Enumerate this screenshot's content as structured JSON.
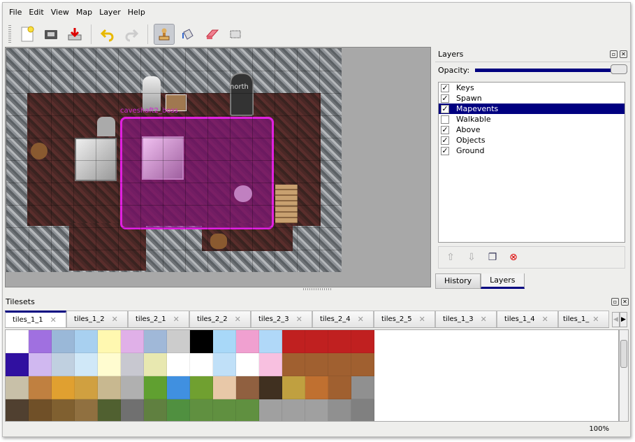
{
  "menu": [
    "File",
    "Edit",
    "View",
    "Map",
    "Layer",
    "Help"
  ],
  "toolbar": {
    "icons": [
      "new-file-icon",
      "open-folder-icon",
      "save-icon",
      "undo-icon",
      "redo-icon",
      "stamp-brush-icon",
      "bucket-fill-icon",
      "eraser-icon",
      "rect-select-icon"
    ],
    "active": "stamp-brush-icon"
  },
  "map": {
    "object_label": "caveshaft2_boss",
    "north_label": "north",
    "selection_color": "#e020e0"
  },
  "layers_panel": {
    "title": "Layers",
    "opacity_label": "Opacity:",
    "opacity": 100,
    "layers": [
      {
        "name": "Keys",
        "visible": true
      },
      {
        "name": "Spawn",
        "visible": true
      },
      {
        "name": "Mapevents",
        "visible": true,
        "selected": true
      },
      {
        "name": "Walkable",
        "visible": false
      },
      {
        "name": "Above",
        "visible": true
      },
      {
        "name": "Objects",
        "visible": true
      },
      {
        "name": "Ground",
        "visible": true
      }
    ],
    "tabs": [
      "History",
      "Layers"
    ],
    "active_tab": "Layers"
  },
  "tilesets_panel": {
    "title": "Tilesets",
    "tabs": [
      "tiles_1_1",
      "tiles_1_2",
      "tiles_2_1",
      "tiles_2_2",
      "tiles_2_3",
      "tiles_2_4",
      "tiles_2_5",
      "tiles_1_3",
      "tiles_1_4",
      "tiles_1_"
    ],
    "active_tab": "tiles_1_1"
  },
  "status": {
    "zoom": "100%"
  },
  "colors": {
    "accent": "#000080"
  }
}
